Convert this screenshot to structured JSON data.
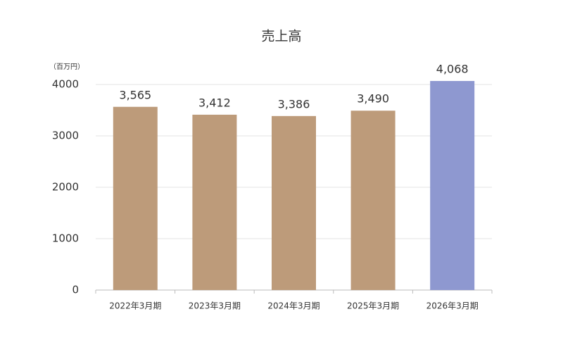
{
  "chart_data": {
    "type": "bar",
    "title": "売上高",
    "y_unit": "（百万円）",
    "categories": [
      "2022年3月期",
      "2023年3月期",
      "2024年3月期",
      "2025年3月期",
      "2026年3月期"
    ],
    "values": [
      3565,
      3412,
      3386,
      3490,
      4068
    ],
    "value_labels": [
      "3,565",
      "3,412",
      "3,386",
      "3,490",
      "4,068"
    ],
    "colors": [
      "#bd9b7a",
      "#bd9b7a",
      "#bd9b7a",
      "#bd9b7a",
      "#8e98d0"
    ],
    "ylim": [
      0,
      4000
    ],
    "yticks": [
      0,
      1000,
      2000,
      3000,
      4000
    ],
    "grid": true
  }
}
